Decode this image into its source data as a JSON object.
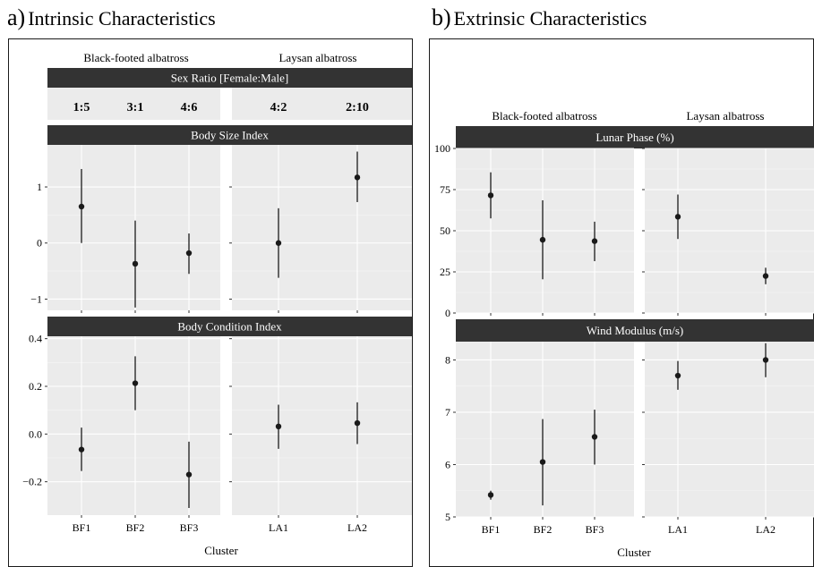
{
  "panel_a": {
    "letter": "a)",
    "title": "Intrinsic Characteristics",
    "species": [
      "Black-footed albatross",
      "Laysan albatross"
    ],
    "x_label": "Cluster"
  },
  "panel_b": {
    "letter": "b)",
    "title": "Extrinsic Characteristics",
    "species": [
      "Black-footed albatross",
      "Laysan albatross"
    ],
    "x_label": "Cluster"
  },
  "colors": {
    "panel_bg": "#ebebeb",
    "grid_major": "#ffffff",
    "strip_bg": "#333333",
    "point": "#1a1a1a"
  },
  "chart_data": [
    {
      "id": "sex-ratio",
      "type": "table",
      "title": "Sex Ratio [Female:Male]",
      "groups": [
        {
          "species": "Black-footed albatross",
          "values": [
            "1:5",
            "3:1",
            "4:6"
          ]
        },
        {
          "species": "Laysan albatross",
          "values": [
            "4:2",
            "2:10"
          ]
        }
      ]
    },
    {
      "id": "body-size",
      "type": "scatter",
      "title": "Body Size Index",
      "ylim": [
        -1.2,
        1.75
      ],
      "yticks": [
        -1,
        0,
        1
      ],
      "ytick_labels": [
        "−1",
        "0",
        "1"
      ],
      "groups": [
        {
          "species": "Black-footed albatross",
          "categories": [
            "BF1",
            "BF2",
            "BF3"
          ],
          "mean": [
            0.65,
            -0.37,
            -0.18
          ],
          "lower": [
            0.0,
            -1.15,
            -0.55
          ],
          "upper": [
            1.32,
            0.4,
            0.17
          ]
        },
        {
          "species": "Laysan albatross",
          "categories": [
            "LA1",
            "LA2"
          ],
          "mean": [
            0.0,
            1.17
          ],
          "lower": [
            -0.62,
            0.73
          ],
          "upper": [
            0.62,
            1.63
          ]
        }
      ]
    },
    {
      "id": "body-condition",
      "type": "scatter",
      "title": "Body Condition Index",
      "ylim": [
        -0.34,
        0.41
      ],
      "yticks": [
        -0.2,
        0.0,
        0.2,
        0.4
      ],
      "ytick_labels": [
        "−0.2",
        "0.0",
        "0.2",
        "0.4"
      ],
      "xlabel": "Cluster",
      "groups": [
        {
          "species": "Black-footed albatross",
          "categories": [
            "BF1",
            "BF2",
            "BF3"
          ],
          "mean": [
            -0.065,
            0.213,
            -0.17
          ],
          "lower": [
            -0.155,
            0.1,
            -0.31
          ],
          "upper": [
            0.027,
            0.326,
            -0.032
          ]
        },
        {
          "species": "Laysan albatross",
          "categories": [
            "LA1",
            "LA2"
          ],
          "mean": [
            0.032,
            0.046
          ],
          "lower": [
            -0.062,
            -0.042
          ],
          "upper": [
            0.123,
            0.133
          ]
        }
      ]
    },
    {
      "id": "lunar-phase",
      "type": "scatter",
      "title": "Lunar Phase (%)",
      "ylim": [
        0,
        100
      ],
      "yticks": [
        0,
        25,
        50,
        75,
        100
      ],
      "ytick_labels": [
        "0",
        "25",
        "50",
        "75",
        "100"
      ],
      "groups": [
        {
          "species": "Black-footed albatross",
          "categories": [
            "BF1",
            "BF2",
            "BF3"
          ],
          "mean": [
            71.5,
            44.5,
            43.7
          ],
          "lower": [
            57.5,
            20.5,
            31.5
          ],
          "upper": [
            85.5,
            68.5,
            55.5
          ]
        },
        {
          "species": "Laysan albatross",
          "categories": [
            "LA1",
            "LA2"
          ],
          "mean": [
            58.5,
            22.5
          ],
          "lower": [
            45.0,
            17.5
          ],
          "upper": [
            72.0,
            27.5
          ]
        }
      ]
    },
    {
      "id": "wind-modulus",
      "type": "scatter",
      "title": "Wind Modulus (m/s)",
      "ylim": [
        5,
        8.35
      ],
      "yticks": [
        5,
        6,
        7,
        8
      ],
      "ytick_labels": [
        "5",
        "6",
        "7",
        "8"
      ],
      "xlabel": "Cluster",
      "groups": [
        {
          "species": "Black-footed albatross",
          "categories": [
            "BF1",
            "BF2",
            "BF3"
          ],
          "mean": [
            5.42,
            6.05,
            6.53
          ],
          "lower": [
            5.33,
            5.22,
            6.0
          ],
          "upper": [
            5.5,
            6.87,
            7.05
          ]
        },
        {
          "species": "Laysan albatross",
          "categories": [
            "LA1",
            "LA2"
          ],
          "mean": [
            7.7,
            8.0
          ],
          "lower": [
            7.43,
            7.67
          ],
          "upper": [
            7.98,
            8.32
          ]
        }
      ]
    }
  ]
}
